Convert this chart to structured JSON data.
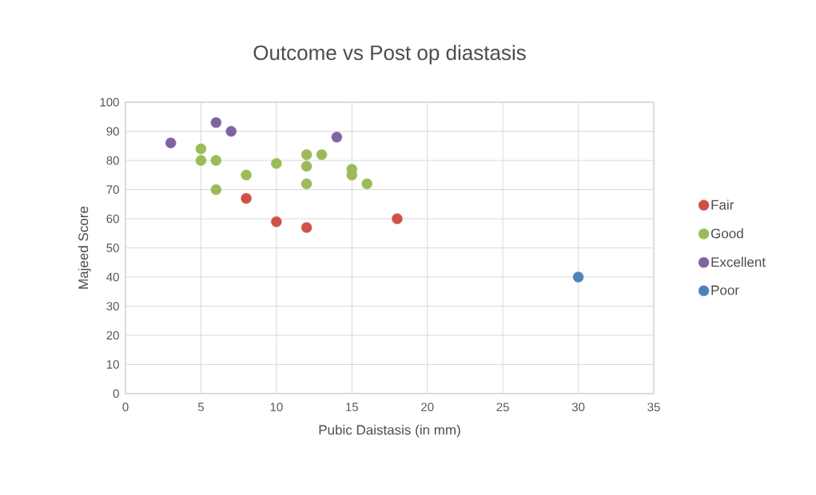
{
  "chart_data": {
    "type": "scatter",
    "title": "Outcome vs Post op diastasis",
    "xlabel": "Pubic Daistasis (in mm)",
    "ylabel": "Majeed Score",
    "xlim": [
      0,
      35
    ],
    "xticks": [
      0,
      5,
      10,
      15,
      20,
      25,
      30,
      35
    ],
    "ylim": [
      0,
      100
    ],
    "yticks": [
      0,
      10,
      20,
      30,
      40,
      50,
      60,
      70,
      80,
      90,
      100
    ],
    "grid": true,
    "legend": "right",
    "marker": "circle",
    "series": [
      {
        "name": "Fair",
        "color": "#d0504a",
        "x": [
          8,
          10,
          12,
          18
        ],
        "values": [
          67,
          59,
          57,
          60
        ]
      },
      {
        "name": "Good",
        "color": "#9bbb59",
        "x": [
          5,
          5,
          6,
          6,
          8,
          10,
          12,
          12,
          12,
          13,
          15,
          15,
          16
        ],
        "values": [
          84,
          80,
          80,
          70,
          75,
          79,
          82,
          78,
          72,
          82,
          77,
          75,
          72
        ]
      },
      {
        "name": "Excellent",
        "color": "#8064a2",
        "x": [
          3,
          6,
          7,
          14
        ],
        "values": [
          86,
          93,
          90,
          88
        ]
      },
      {
        "name": "Poor",
        "color": "#4f81bd",
        "x": [
          30
        ],
        "values": [
          40
        ]
      }
    ]
  }
}
